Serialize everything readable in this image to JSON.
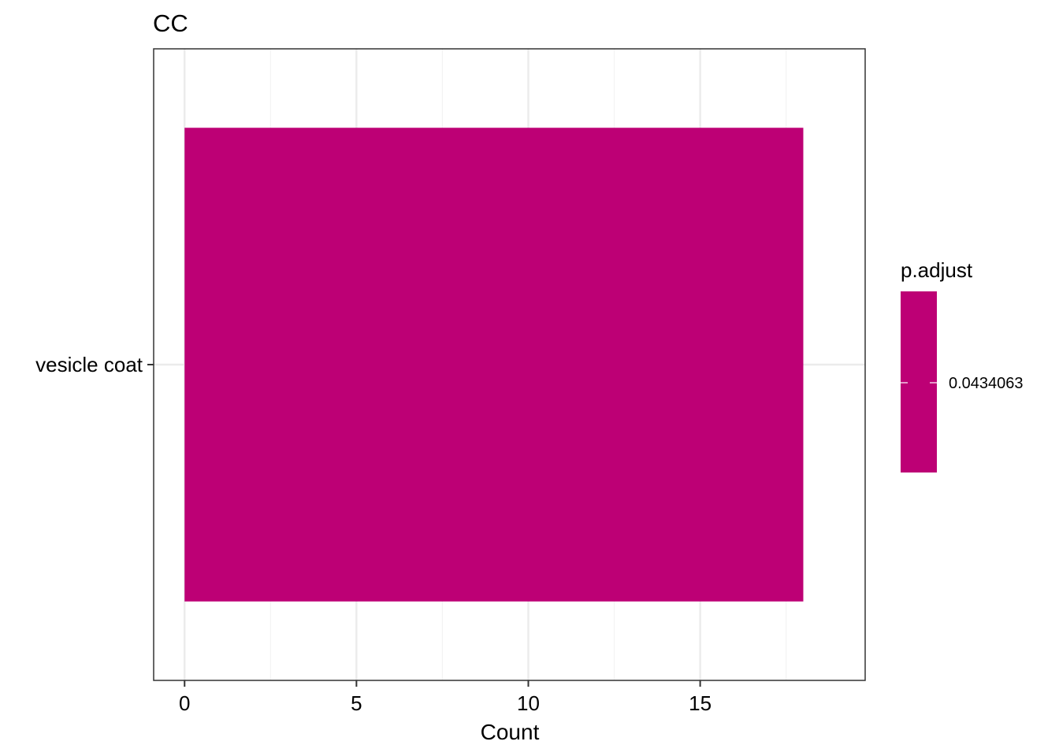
{
  "chart_data": {
    "type": "bar",
    "orientation": "horizontal",
    "title": "CC",
    "xlabel": "Count",
    "ylabel": "",
    "categories": [
      "vesicle coat"
    ],
    "values": [
      18
    ],
    "xlim": [
      -0.9,
      19.8
    ],
    "x_ticks": [
      0,
      5,
      10,
      15
    ],
    "x_tick_labels": [
      "0",
      "5",
      "10",
      "15"
    ],
    "grid": true,
    "theme": "bw",
    "bar_color": "#BD0075",
    "legend": {
      "title": "p.adjust",
      "type": "colorbar",
      "placement": "right",
      "labels": [
        "0.0434063"
      ],
      "color": "#BD0075"
    }
  },
  "colors": {
    "panel_border": "#333333",
    "grid_major": "#EBEBEB",
    "grid_minor": "#F3F3F3",
    "text": "#000000"
  }
}
